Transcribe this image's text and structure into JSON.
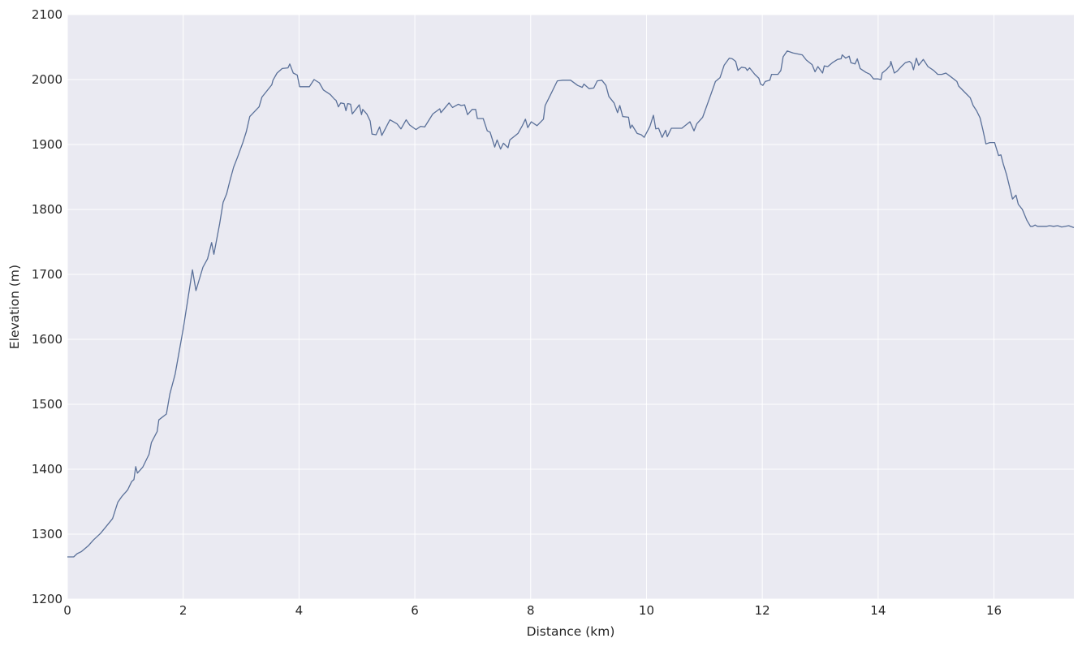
{
  "chart_data": {
    "type": "line",
    "title": "",
    "xlabel": "Distance (km)",
    "ylabel": "Elevation (m)",
    "xlim": [
      0,
      17.38
    ],
    "ylim": [
      1200,
      2100
    ],
    "xticks": [
      0,
      2,
      4,
      6,
      8,
      10,
      12,
      14,
      16
    ],
    "yticks": [
      1200,
      1300,
      1400,
      1500,
      1600,
      1700,
      1800,
      1900,
      2000,
      2100
    ],
    "grid": true,
    "style": "darkgrid",
    "colors": {
      "plot_background": "#eaeaf2",
      "grid": "#ffffff",
      "line": "#5a7099",
      "text": "#262626"
    },
    "series": [
      {
        "x": [
          0,
          0.11,
          0.17,
          0.24,
          0.36,
          0.45,
          0.57,
          0.69,
          0.78,
          0.87,
          0.94,
          1.04,
          1.11,
          1.15,
          1.18,
          1.21,
          1.3,
          1.41,
          1.45,
          1.55,
          1.58,
          1.71,
          1.77,
          1.86,
          2.0,
          2.16,
          2.22,
          2.34,
          2.42,
          2.49,
          2.53,
          2.63,
          2.69,
          2.75,
          2.8,
          2.87,
          2.94,
          3.03,
          3.09,
          3.15,
          3.31,
          3.36,
          3.53,
          3.55,
          3.62,
          3.71,
          3.81,
          3.84,
          3.9,
          3.97,
          4.01,
          4.14,
          4.18,
          4.26,
          4.35,
          4.42,
          4.54,
          4.61,
          4.64,
          4.68,
          4.72,
          4.78,
          4.81,
          4.84,
          4.89,
          4.92,
          4.98,
          5.04,
          5.08,
          5.1,
          5.17,
          5.23,
          5.26,
          5.33,
          5.39,
          5.43,
          5.57,
          5.69,
          5.76,
          5.85,
          5.91,
          6.02,
          6.1,
          6.17,
          6.31,
          6.43,
          6.45,
          6.59,
          6.65,
          6.75,
          6.8,
          6.86,
          6.91,
          6.99,
          7.05,
          7.08,
          7.18,
          7.25,
          7.3,
          7.38,
          7.42,
          7.48,
          7.53,
          7.61,
          7.64,
          7.78,
          7.85,
          7.91,
          7.95,
          8.01,
          8.11,
          8.22,
          8.25,
          8.34,
          8.46,
          8.55,
          8.69,
          8.81,
          8.89,
          8.92,
          9.01,
          9.09,
          9.15,
          9.23,
          9.3,
          9.35,
          9.44,
          9.5,
          9.54,
          9.59,
          9.69,
          9.72,
          9.75,
          9.84,
          9.91,
          9.96,
          10.06,
          10.12,
          10.16,
          10.21,
          10.27,
          10.33,
          10.36,
          10.43,
          10.61,
          10.75,
          10.82,
          10.87,
          10.97,
          11.1,
          11.19,
          11.27,
          11.34,
          11.43,
          11.48,
          11.54,
          11.58,
          11.64,
          11.71,
          11.74,
          11.78,
          11.87,
          11.94,
          11.97,
          12.01,
          12.05,
          12.13,
          12.16,
          12.27,
          12.32,
          12.36,
          12.43,
          12.53,
          12.69,
          12.76,
          12.86,
          12.91,
          12.96,
          13.04,
          13.07,
          13.13,
          13.21,
          13.3,
          13.36,
          13.38,
          13.44,
          13.5,
          13.53,
          13.6,
          13.64,
          13.69,
          13.79,
          13.86,
          13.92,
          14.0,
          14.05,
          14.07,
          14.15,
          14.21,
          14.22,
          14.28,
          14.33,
          14.4,
          14.47,
          14.54,
          14.58,
          14.61,
          14.66,
          14.7,
          14.78,
          14.86,
          14.96,
          15.03,
          15.1,
          15.17,
          15.26,
          15.36,
          15.39,
          15.5,
          15.59,
          15.64,
          15.7,
          15.76,
          15.81,
          15.86,
          15.93,
          16.01,
          16.08,
          16.12,
          16.16,
          16.22,
          16.32,
          16.38,
          16.42,
          16.49,
          16.57,
          16.63,
          16.67,
          16.71,
          16.75,
          16.91,
          16.96,
          17.03,
          17.1,
          17.17,
          17.29,
          17.38
        ],
        "y": [
          1265,
          1265,
          1270,
          1273,
          1282,
          1291,
          1301,
          1314,
          1324,
          1349,
          1358,
          1368,
          1381,
          1384,
          1404,
          1394,
          1403,
          1423,
          1441,
          1458,
          1476,
          1485,
          1516,
          1546,
          1616,
          1707,
          1675,
          1711,
          1724,
          1749,
          1731,
          1778,
          1811,
          1824,
          1842,
          1865,
          1881,
          1903,
          1920,
          1943,
          1958,
          1973,
          1992,
          1999,
          2010,
          2017,
          2018,
          2024,
          2010,
          2007,
          1989,
          1989,
          1989,
          2000,
          1995,
          1984,
          1977,
          1970,
          1968,
          1958,
          1964,
          1963,
          1952,
          1963,
          1962,
          1947,
          1954,
          1961,
          1946,
          1954,
          1947,
          1936,
          1916,
          1915,
          1927,
          1914,
          1938,
          1932,
          1924,
          1938,
          1930,
          1923,
          1928,
          1927,
          1947,
          1955,
          1949,
          1964,
          1957,
          1962,
          1960,
          1961,
          1946,
          1954,
          1954,
          1940,
          1940,
          1921,
          1919,
          1896,
          1907,
          1893,
          1902,
          1895,
          1907,
          1917,
          1928,
          1939,
          1926,
          1935,
          1929,
          1939,
          1960,
          1976,
          1998,
          1999,
          1999,
          1991,
          1988,
          1993,
          1986,
          1987,
          1998,
          1999,
          1991,
          1974,
          1964,
          1949,
          1960,
          1943,
          1942,
          1925,
          1930,
          1917,
          1915,
          1911,
          1928,
          1945,
          1924,
          1925,
          1911,
          1922,
          1912,
          1925,
          1925,
          1935,
          1921,
          1932,
          1942,
          1974,
          1997,
          2003,
          2022,
          2033,
          2032,
          2028,
          2014,
          2019,
          2018,
          2014,
          2018,
          2008,
          2002,
          1993,
          1991,
          1997,
          1999,
          2008,
          2008,
          2014,
          2035,
          2044,
          2041,
          2038,
          2030,
          2023,
          2012,
          2020,
          2010,
          2021,
          2020,
          2026,
          2031,
          2032,
          2038,
          2033,
          2036,
          2026,
          2024,
          2032,
          2017,
          2011,
          2008,
          2001,
          2001,
          2000,
          2010,
          2016,
          2022,
          2028,
          2010,
          2013,
          2020,
          2026,
          2028,
          2025,
          2015,
          2033,
          2022,
          2031,
          2020,
          2014,
          2008,
          2008,
          2010,
          2004,
          1997,
          1990,
          1980,
          1972,
          1960,
          1952,
          1941,
          1922,
          1901,
          1903,
          1903,
          1883,
          1884,
          1870,
          1853,
          1816,
          1822,
          1808,
          1800,
          1783,
          1774,
          1774,
          1776,
          1774,
          1774,
          1775,
          1774,
          1775,
          1773,
          1775,
          1772
        ]
      }
    ]
  }
}
